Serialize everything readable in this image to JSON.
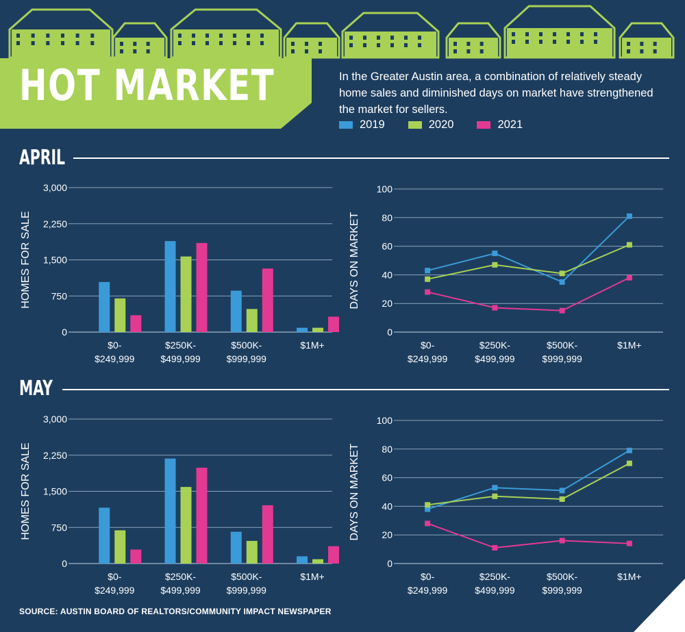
{
  "header": {
    "title": "HOT MARKET",
    "intro": "In the Greater Austin area, a combination of relatively steady home sales and diminished days on market have strengthened the market for sellers."
  },
  "legend": [
    {
      "label": "2019",
      "color": "#3b9bd8"
    },
    {
      "label": "2020",
      "color": "#a9d156"
    },
    {
      "label": "2021",
      "color": "#e23a93"
    }
  ],
  "sections": {
    "april": {
      "label": "APRIL"
    },
    "may": {
      "label": "MAY"
    }
  },
  "source": "SOURCE: AUSTIN BOARD OF REALTORS/COMMUNITY IMPACT NEWSPAPER",
  "chart_data": [
    {
      "type": "bar",
      "section": "APRIL",
      "ylabel": "HOMES FOR SALE",
      "ylim": [
        0,
        3000
      ],
      "yticks": [
        "0",
        "750",
        "1,500",
        "2,250",
        "3,000"
      ],
      "categories": [
        [
          "$0-",
          "$249,999"
        ],
        [
          "$250K-",
          "$499,999"
        ],
        [
          "$500K-",
          "$999,999"
        ],
        [
          "$1M+"
        ]
      ],
      "series": [
        {
          "name": "2019",
          "values": [
            1040,
            1890,
            860,
            90
          ]
        },
        {
          "name": "2020",
          "values": [
            700,
            1570,
            480,
            90
          ]
        },
        {
          "name": "2021",
          "values": [
            350,
            1850,
            1320,
            320
          ]
        }
      ],
      "grid": true
    },
    {
      "type": "line",
      "section": "APRIL",
      "ylabel": "DAYS ON MARKET",
      "ylim": [
        0,
        100
      ],
      "yticks": [
        "0",
        "20",
        "40",
        "60",
        "80",
        "100"
      ],
      "categories": [
        [
          "$0-",
          "$249,999"
        ],
        [
          "$250K-",
          "$499,999"
        ],
        [
          "$500K-",
          "$999,999"
        ],
        [
          "$1M+"
        ]
      ],
      "series": [
        {
          "name": "2019",
          "values": [
            43,
            55,
            35,
            81
          ]
        },
        {
          "name": "2020",
          "values": [
            37,
            47,
            41,
            61
          ]
        },
        {
          "name": "2021",
          "values": [
            28,
            17,
            15,
            38
          ]
        }
      ],
      "grid": true
    },
    {
      "type": "bar",
      "section": "MAY",
      "ylabel": "HOMES FOR SALE",
      "ylim": [
        0,
        3000
      ],
      "yticks": [
        "0",
        "750",
        "1,500",
        "2,250",
        "3,000"
      ],
      "categories": [
        [
          "$0-",
          "$249,999"
        ],
        [
          "$250K-",
          "$499,999"
        ],
        [
          "$500K-",
          "$999,999"
        ],
        [
          "$1M+"
        ]
      ],
      "series": [
        {
          "name": "2019",
          "values": [
            1160,
            2180,
            660,
            150
          ]
        },
        {
          "name": "2020",
          "values": [
            690,
            1590,
            470,
            90
          ]
        },
        {
          "name": "2021",
          "values": [
            290,
            1990,
            1210,
            360
          ]
        }
      ],
      "grid": true
    },
    {
      "type": "line",
      "section": "MAY",
      "ylabel": "DAYS ON MARKET",
      "ylim": [
        0,
        100
      ],
      "yticks": [
        "0",
        "20",
        "40",
        "60",
        "80",
        "100"
      ],
      "categories": [
        [
          "$0-",
          "$249,999"
        ],
        [
          "$250K-",
          "$499,999"
        ],
        [
          "$500K-",
          "$999,999"
        ],
        [
          "$1M+"
        ]
      ],
      "series": [
        {
          "name": "2019",
          "values": [
            38,
            53,
            51,
            79
          ]
        },
        {
          "name": "2020",
          "values": [
            41,
            47,
            45,
            70
          ]
        },
        {
          "name": "2021",
          "values": [
            28,
            11,
            16,
            14
          ]
        }
      ],
      "grid": true
    }
  ]
}
